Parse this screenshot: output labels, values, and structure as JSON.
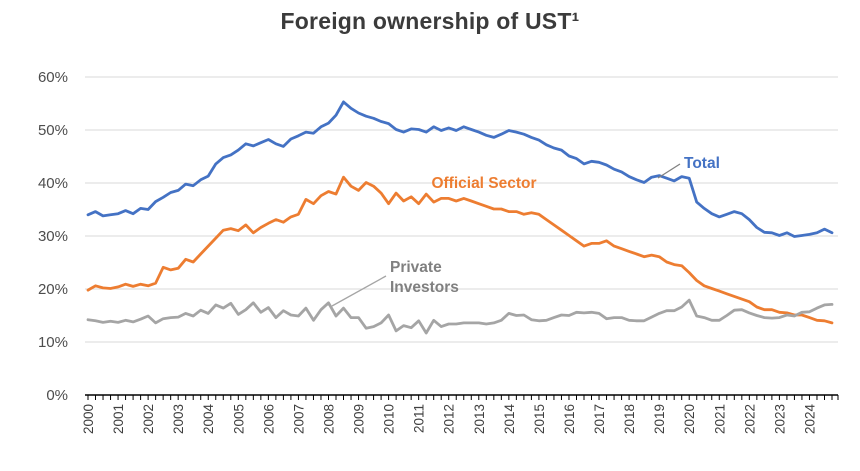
{
  "chart_data": {
    "type": "line",
    "title": "Foreign ownership of UST¹",
    "x_unit": "quarterly",
    "x_start_year": 2000,
    "x_end_year": 2024,
    "ylim": [
      0,
      60
    ],
    "grid": "horizontal",
    "y_tick_labels": [
      "0%",
      "10%",
      "20%",
      "30%",
      "40%",
      "50%",
      "60%"
    ],
    "x_tick_labels": [
      "2000",
      "2001",
      "2002",
      "2003",
      "2004",
      "2005",
      "2006",
      "2007",
      "2008",
      "2009",
      "2010",
      "2011",
      "2012",
      "2013",
      "2014",
      "2015",
      "2016",
      "2017",
      "2018",
      "2019",
      "2020",
      "2021",
      "2022",
      "2023",
      "2024"
    ],
    "series": [
      {
        "name": "Total",
        "color": "#4472C4",
        "values": [
          34.0,
          34.6,
          33.8,
          34.0,
          34.2,
          34.8,
          34.2,
          35.2,
          35.0,
          36.5,
          37.3,
          38.2,
          38.6,
          39.8,
          39.5,
          40.6,
          41.3,
          43.6,
          44.8,
          45.3,
          46.2,
          47.4,
          47.0,
          47.6,
          48.2,
          47.4,
          46.9,
          48.3,
          48.9,
          49.6,
          49.4,
          50.6,
          51.3,
          52.8,
          55.3,
          54.1,
          53.2,
          52.6,
          52.2,
          51.6,
          51.2,
          50.1,
          49.6,
          50.2,
          50.1,
          49.6,
          50.6,
          49.9,
          50.4,
          49.9,
          50.6,
          50.1,
          49.6,
          49.0,
          48.6,
          49.2,
          49.9,
          49.6,
          49.2,
          48.6,
          48.1,
          47.2,
          46.6,
          46.2,
          45.1,
          44.6,
          43.6,
          44.1,
          43.9,
          43.4,
          42.6,
          42.1,
          41.2,
          40.6,
          40.1,
          41.1,
          41.4,
          40.9,
          40.4,
          41.2,
          40.9,
          36.4,
          35.2,
          34.2,
          33.6,
          34.1,
          34.6,
          34.2,
          33.1,
          31.6,
          30.7,
          30.6,
          30.1,
          30.6,
          29.9,
          30.1,
          30.3,
          30.6,
          31.3,
          30.6
        ]
      },
      {
        "name": "Official Sector",
        "color": "#ED7D31",
        "values": [
          19.8,
          20.6,
          20.2,
          20.1,
          20.4,
          20.9,
          20.5,
          20.9,
          20.6,
          21.1,
          24.1,
          23.6,
          23.9,
          25.6,
          25.1,
          26.6,
          28.1,
          29.6,
          31.1,
          31.4,
          31.0,
          32.1,
          30.6,
          31.6,
          32.4,
          33.1,
          32.6,
          33.6,
          34.1,
          36.9,
          36.1,
          37.6,
          38.4,
          37.9,
          41.1,
          39.4,
          38.6,
          40.1,
          39.4,
          38.1,
          36.1,
          38.1,
          36.6,
          37.4,
          36.1,
          37.9,
          36.4,
          37.1,
          37.1,
          36.6,
          37.1,
          36.6,
          36.1,
          35.6,
          35.1,
          35.1,
          34.6,
          34.6,
          34.1,
          34.4,
          34.1,
          33.1,
          32.1,
          31.1,
          30.1,
          29.1,
          28.1,
          28.6,
          28.6,
          29.1,
          28.1,
          27.6,
          27.1,
          26.6,
          26.1,
          26.4,
          26.1,
          25.1,
          24.6,
          24.4,
          23.1,
          21.6,
          20.6,
          20.1,
          19.6,
          19.1,
          18.6,
          18.1,
          17.6,
          16.6,
          16.1,
          16.1,
          15.6,
          15.5,
          15.1,
          15.1,
          14.6,
          14.1,
          14.0,
          13.6
        ]
      },
      {
        "name": "Private Investors",
        "color": "#A5A5A5",
        "values": [
          14.2,
          14.0,
          13.7,
          13.9,
          13.7,
          14.1,
          13.8,
          14.3,
          14.9,
          13.6,
          14.4,
          14.6,
          14.7,
          15.4,
          14.9,
          16.0,
          15.4,
          17.0,
          16.4,
          17.3,
          15.2,
          16.1,
          17.4,
          15.6,
          16.5,
          14.6,
          15.9,
          15.1,
          14.9,
          16.4,
          14.1,
          16.1,
          17.4,
          14.9,
          16.4,
          14.6,
          14.6,
          12.6,
          12.9,
          13.6,
          15.1,
          12.1,
          13.1,
          12.7,
          14.0,
          11.7,
          14.1,
          12.9,
          13.4,
          13.4,
          13.6,
          13.6,
          13.6,
          13.4,
          13.6,
          14.1,
          15.4,
          15.0,
          15.1,
          14.2,
          14.0,
          14.1,
          14.6,
          15.1,
          15.0,
          15.6,
          15.5,
          15.6,
          15.4,
          14.4,
          14.6,
          14.6,
          14.1,
          14.0,
          14.0,
          14.7,
          15.4,
          15.9,
          15.9,
          16.6,
          17.9,
          14.9,
          14.6,
          14.1,
          14.1,
          15.0,
          16.0,
          16.1,
          15.5,
          15.0,
          14.6,
          14.5,
          14.6,
          15.1,
          14.9,
          15.6,
          15.7,
          16.4,
          17.0,
          17.1
        ]
      }
    ],
    "annotations": [
      {
        "id": "total-label",
        "text": "Total",
        "color": "#4472C4",
        "x": 684,
        "y": 168,
        "anchor": "start",
        "leader": [
          [
            680,
            164
          ],
          [
            658,
            178
          ]
        ],
        "leader_color": "#808080"
      },
      {
        "id": "official-sector-label",
        "text": "Official Sector",
        "color": "#ED7D31",
        "x": 484,
        "y": 188,
        "anchor": "middle"
      },
      {
        "id": "private-investors-label",
        "text": "Private\nInvestors",
        "color": "#808080",
        "x": 390,
        "y": 272,
        "anchor": "start",
        "leader": [
          [
            386,
            276
          ],
          [
            332,
            306
          ]
        ],
        "leader_color": "#A5A5A5"
      }
    ],
    "style": {
      "gridline_color": "#d9d9d9",
      "axis_color": "#000000",
      "y_label_color": "#4d4d4d",
      "x_label_color": "#404040",
      "background": "#ffffff"
    }
  }
}
